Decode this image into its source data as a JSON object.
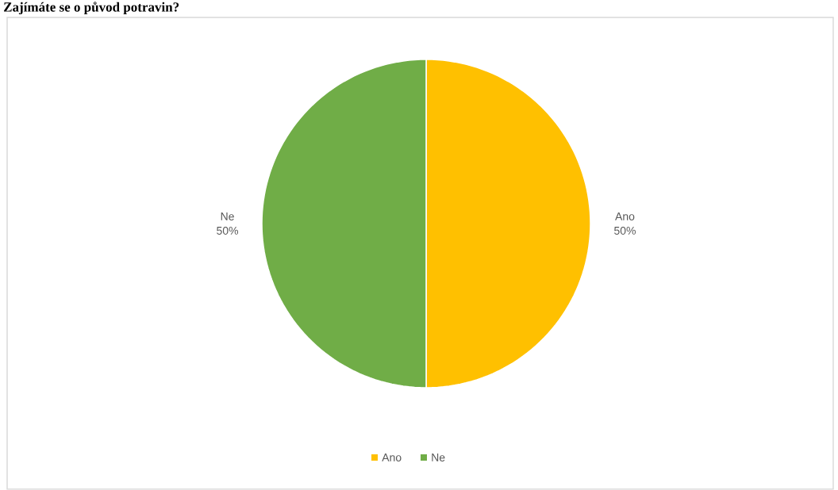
{
  "chart_data": {
    "type": "pie",
    "title": "Zajímáte se o původ potravin?",
    "categories": [
      "Ano",
      "Ne"
    ],
    "values": [
      50,
      50
    ],
    "value_labels": [
      "50%",
      "50%"
    ],
    "colors": [
      "#ffc000",
      "#70ad47"
    ],
    "legend": "bottom"
  }
}
